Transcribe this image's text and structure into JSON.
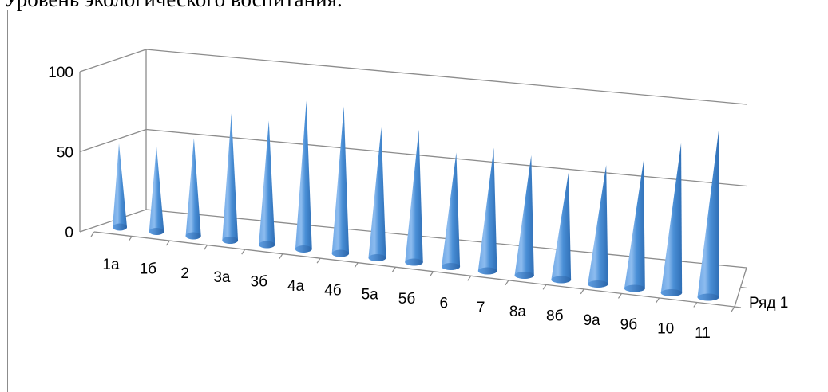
{
  "heading": "Уровень экологического воспитания.",
  "chart_data": {
    "type": "bar",
    "subtype": "3d-cone",
    "title": "",
    "categories": [
      "1а",
      "1б",
      "2",
      "3а",
      "3б",
      "4а",
      "4б",
      "5а",
      "5б",
      "6",
      "7",
      "8а",
      "8б",
      "9а",
      "9б",
      "10",
      "11"
    ],
    "series": [
      {
        "name": "Ряд 1",
        "color": "#4a8fd6",
        "values": [
          50,
          51,
          58,
          75,
          73,
          87,
          86,
          76,
          77,
          66,
          71,
          69,
          62,
          68,
          73,
          85,
          94
        ]
      }
    ],
    "ylim": [
      0,
      100
    ],
    "yticks": [
      "0",
      "50",
      "100"
    ],
    "grid": true
  }
}
